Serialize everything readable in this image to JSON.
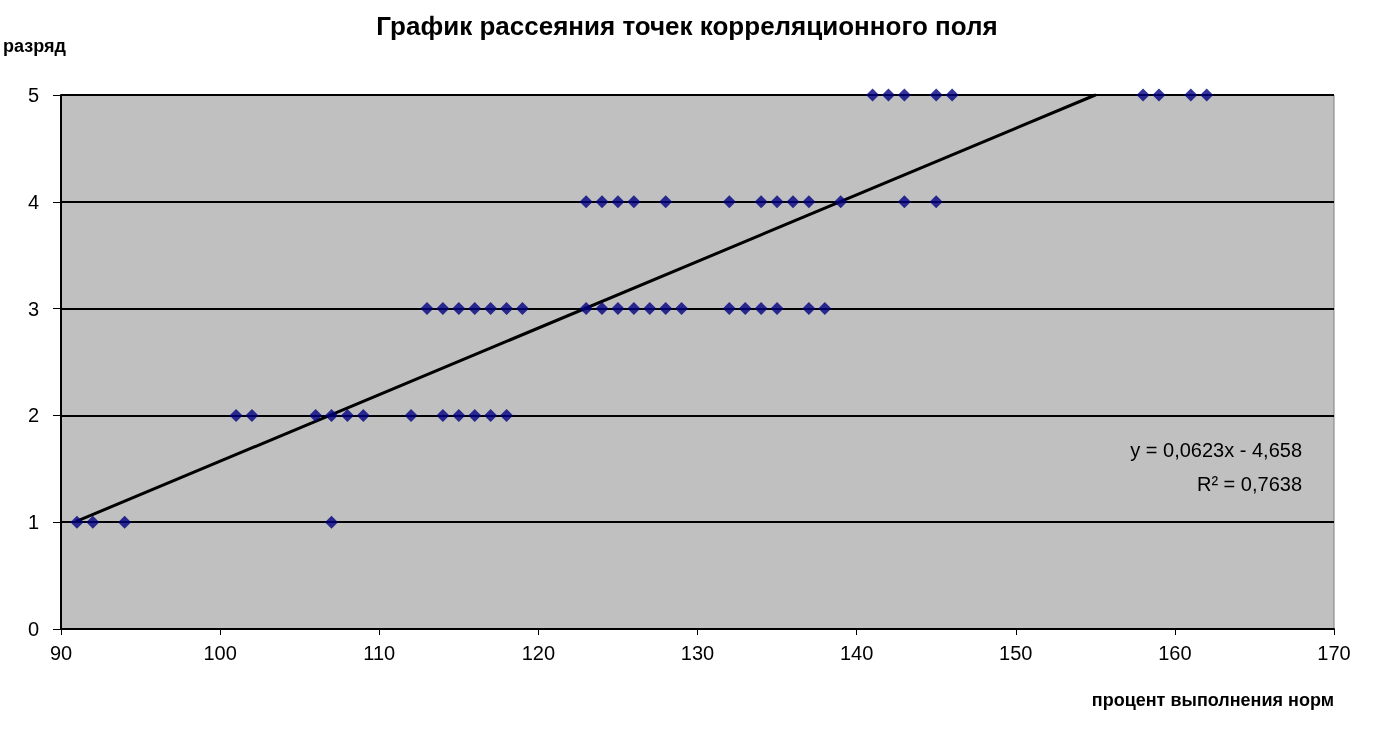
{
  "chart_data": {
    "type": "scatter",
    "title": "График рассеяния точек корреляционного поля",
    "xlabel": "процент выполнения норм",
    "ylabel": "разряд",
    "annotations": [
      "y = 0,0623x - 4,658",
      "R² = 0,7638"
    ],
    "xlim": [
      90,
      170
    ],
    "xticks": [
      90,
      100,
      110,
      120,
      130,
      140,
      150,
      160,
      170
    ],
    "ylim": [
      0,
      5
    ],
    "yticks": [
      0,
      1,
      2,
      3,
      4,
      5
    ],
    "grid": "y",
    "series": [
      {
        "color": "#000080",
        "marker": "diamond",
        "x": [
          91,
          92,
          94,
          107,
          101,
          102,
          106,
          107,
          108,
          109,
          112,
          114,
          115,
          116,
          117,
          118,
          113,
          114,
          115,
          116,
          117,
          118,
          119,
          123,
          124,
          125,
          126,
          127,
          128,
          129,
          132,
          133,
          134,
          135,
          137,
          138,
          123,
          124,
          125,
          126,
          128,
          132,
          134,
          135,
          136,
          137,
          139,
          143,
          145,
          141,
          142,
          143,
          145,
          146,
          158,
          159,
          161,
          162
        ],
        "values": [
          1,
          1,
          1,
          1,
          2,
          2,
          2,
          2,
          2,
          2,
          2,
          2,
          2,
          2,
          2,
          2,
          3,
          3,
          3,
          3,
          3,
          3,
          3,
          3,
          3,
          3,
          3,
          3,
          3,
          3,
          3,
          3,
          3,
          3,
          3,
          3,
          4,
          4,
          4,
          4,
          4,
          4,
          4,
          4,
          4,
          4,
          4,
          4,
          4,
          5,
          5,
          5,
          5,
          5,
          5,
          5,
          5,
          5
        ]
      },
      {
        "type": "line",
        "color": "#000000",
        "marker": "none",
        "line_style": "solid",
        "x": [
          91,
          155
        ],
        "values": [
          1.01,
          5.0
        ]
      }
    ]
  }
}
